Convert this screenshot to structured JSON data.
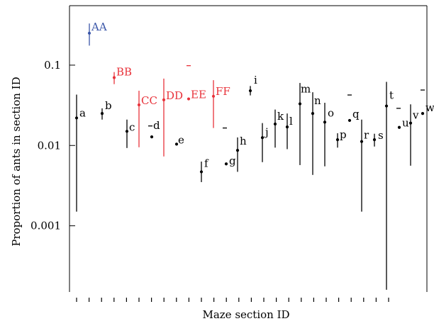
{
  "chart_data": {
    "type": "scatter",
    "xlabel": "Maze section ID",
    "ylabel": "Proportion of ants in section ID",
    "yscale": "log",
    "ylim": [
      0.00015,
      0.55
    ],
    "yticks": [
      {
        "value": 0.1,
        "label": "0.1"
      },
      {
        "value": 0.01,
        "label": "0.01"
      },
      {
        "value": 0.001,
        "label": "0.001"
      }
    ],
    "x_tick_count": 26,
    "grid": false,
    "colors": {
      "black": "#000000",
      "red": "#e8323a",
      "blue": "#3a56a8"
    },
    "series": [
      {
        "points": [
          {
            "label": "AA",
            "x": 1,
            "y": 0.25,
            "lo": 0.175,
            "hi": 0.33,
            "color": "blue"
          },
          {
            "label": "BB",
            "x": 2,
            "y": 0.07,
            "lo": 0.058,
            "hi": 0.082,
            "color": "red"
          },
          {
            "label": "CC",
            "x": 3,
            "y": 0.032,
            "lo": 0.0095,
            "hi": 0.048,
            "color": "red"
          },
          {
            "label": "DD",
            "x": 4,
            "y": 0.037,
            "lo": 0.0073,
            "hi": 0.068,
            "color": "red"
          },
          {
            "label": "EE",
            "x": 5,
            "y": 0.038,
            "lo": 0.038,
            "hi": 0.038,
            "color": "red"
          },
          {
            "label": "FF",
            "x": 6,
            "y": 0.041,
            "lo": 0.0165,
            "hi": 0.065,
            "color": "red"
          }
        ]
      },
      {
        "points": [
          {
            "label": "a",
            "x": 1,
            "y": 0.022,
            "lo": 0.0015,
            "hi": 0.043,
            "color": "black"
          },
          {
            "label": "b",
            "x": 2,
            "y": 0.025,
            "lo": 0.021,
            "hi": 0.029,
            "color": "black"
          },
          {
            "label": "c",
            "x": 3,
            "y": 0.015,
            "lo": 0.0093,
            "hi": 0.021,
            "color": "black"
          },
          {
            "label": "d",
            "x": 4,
            "y": 0.0128,
            "lo": 0.0128,
            "hi": 0.0128,
            "color": "black"
          },
          {
            "label": "e",
            "x": 5,
            "y": 0.0104,
            "lo": 0.0102,
            "hi": 0.0106,
            "color": "black"
          },
          {
            "label": "f",
            "x": 6,
            "y": 0.0047,
            "lo": 0.0035,
            "hi": 0.0063,
            "color": "black"
          },
          {
            "label": "g",
            "x": 7,
            "y": 0.0059,
            "lo": 0.0057,
            "hi": 0.0061,
            "color": "black"
          },
          {
            "label": "h",
            "x": 8,
            "y": 0.0087,
            "lo": 0.0047,
            "hi": 0.0126,
            "color": "black"
          },
          {
            "label": "i",
            "x": 9,
            "y": 0.048,
            "lo": 0.042,
            "hi": 0.055,
            "color": "black"
          },
          {
            "label": "j",
            "x": 10,
            "y": 0.0125,
            "lo": 0.0062,
            "hi": 0.019,
            "color": "black"
          },
          {
            "label": "k",
            "x": 11,
            "y": 0.0185,
            "lo": 0.0094,
            "hi": 0.028,
            "color": "black"
          },
          {
            "label": "l",
            "x": 12,
            "y": 0.017,
            "lo": 0.009,
            "hi": 0.025,
            "color": "black"
          },
          {
            "label": "m",
            "x": 13,
            "y": 0.033,
            "lo": 0.0057,
            "hi": 0.06,
            "color": "black"
          },
          {
            "label": "n",
            "x": 14,
            "y": 0.025,
            "lo": 0.0043,
            "hi": 0.046,
            "color": "black"
          },
          {
            "label": "o",
            "x": 15,
            "y": 0.0195,
            "lo": 0.0055,
            "hi": 0.034,
            "color": "black"
          },
          {
            "label": "p",
            "x": 16,
            "y": 0.0118,
            "lo": 0.0094,
            "hi": 0.0142,
            "color": "black"
          },
          {
            "label": "q",
            "x": 17,
            "y": 0.0205,
            "lo": 0.02,
            "hi": 0.021,
            "color": "black"
          },
          {
            "label": "r",
            "x": 18,
            "y": 0.0112,
            "lo": 0.0015,
            "hi": 0.021,
            "color": "black"
          },
          {
            "label": "s",
            "x": 19,
            "y": 0.0118,
            "lo": 0.0097,
            "hi": 0.014,
            "color": "black"
          },
          {
            "label": "t",
            "x": 20,
            "y": 0.031,
            "lo": 0.00016,
            "hi": 0.062,
            "color": "black"
          },
          {
            "label": "u",
            "x": 21,
            "y": 0.0168,
            "lo": 0.0165,
            "hi": 0.017,
            "color": "black"
          },
          {
            "label": "v",
            "x": 22,
            "y": 0.019,
            "lo": 0.0056,
            "hi": 0.0325,
            "color": "black"
          },
          {
            "label": "w",
            "x": 23,
            "y": 0.025,
            "lo": 0.0245,
            "hi": 0.0255,
            "color": "black"
          }
        ]
      }
    ],
    "dashes": [
      {
        "x": 4,
        "y": 0.0175,
        "color": "black"
      },
      {
        "x": 5,
        "y": 0.0985,
        "color": "red"
      },
      {
        "x": 7,
        "y": 0.0165,
        "color": "black"
      },
      {
        "x": 17,
        "y": 0.0425,
        "color": "black"
      },
      {
        "x": 20,
        "y": 0.029,
        "color": "black"
      },
      {
        "x": 22,
        "y": 0.049,
        "color": "black"
      }
    ]
  }
}
